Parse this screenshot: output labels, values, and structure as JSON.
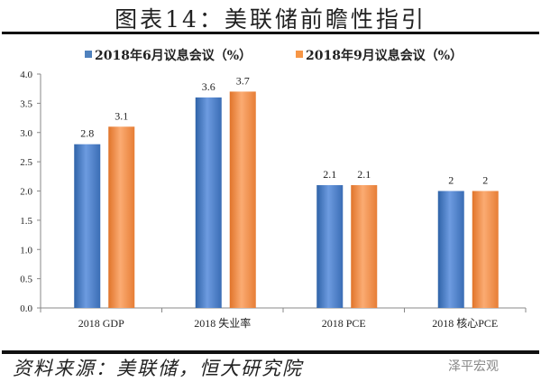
{
  "title": "图表14：美联储前瞻性指引",
  "source": "资料来源：美联储，恒大研究院",
  "watermark": "泽平宏观",
  "chart_data": {
    "type": "bar",
    "categories": [
      "2018 GDP",
      "2018 失业率",
      "2018 PCE",
      "2018 核心PCE"
    ],
    "series": [
      {
        "name": "2018年6月议息会议（%）",
        "values": [
          2.8,
          3.6,
          2.1,
          2.0
        ],
        "labels": [
          "2.8",
          "3.6",
          "2.1",
          "2"
        ],
        "color": "#4f81bd"
      },
      {
        "name": "2018年9月议息会议（%）",
        "values": [
          3.1,
          3.7,
          2.1,
          2.0
        ],
        "labels": [
          "3.1",
          "3.7",
          "2.1",
          "2"
        ],
        "color": "#f79646"
      }
    ],
    "yticks": [
      "0.0",
      "0.5",
      "1.0",
      "1.5",
      "2.0",
      "2.5",
      "3.0",
      "3.5",
      "4.0"
    ],
    "ylim": [
      0,
      4
    ],
    "legend": "top-center",
    "grid": false
  }
}
